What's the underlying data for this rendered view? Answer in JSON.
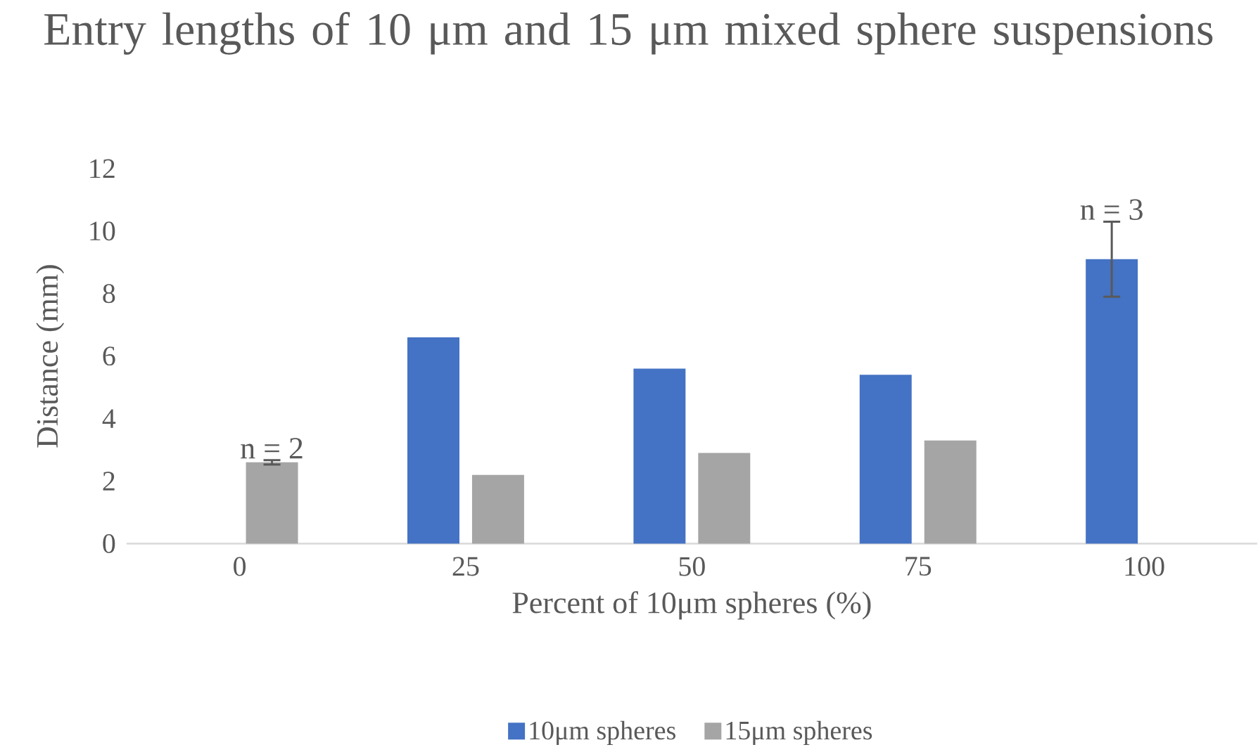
{
  "chart_data": {
    "type": "bar",
    "title": "Entry lengths of 10 μm and 15 μm mixed sphere suspensions",
    "xlabel": "Percent of 10μm spheres (%)",
    "ylabel": "Distance (mm)",
    "categories": [
      "0",
      "25",
      "50",
      "75",
      "100"
    ],
    "series": [
      {
        "name": "10μm spheres",
        "color": "#4472c4",
        "values": [
          null,
          6.6,
          5.6,
          5.4,
          9.1
        ],
        "errors": [
          null,
          null,
          null,
          null,
          1.2
        ]
      },
      {
        "name": "15μm spheres",
        "color": "#a5a5a5",
        "values": [
          2.6,
          2.2,
          2.9,
          3.3,
          null
        ],
        "errors": [
          0.07,
          null,
          null,
          null,
          null
        ]
      }
    ],
    "ylim": [
      0,
      12
    ],
    "yticks": [
      0,
      2,
      4,
      6,
      8,
      10,
      12
    ],
    "legend": "bottom",
    "annotations": [
      "n = 2",
      "n = 3"
    ]
  }
}
